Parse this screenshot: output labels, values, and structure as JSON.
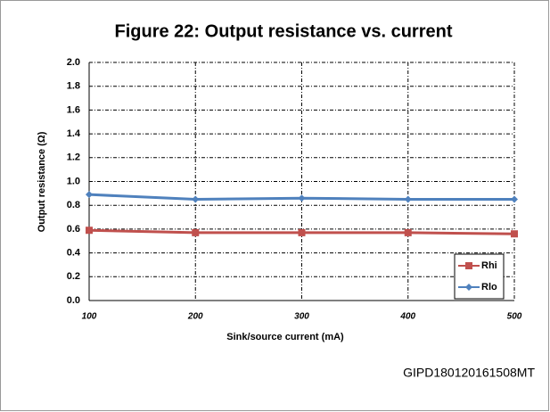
{
  "chart_data": {
    "type": "line",
    "title": "Figure 22: Output resistance vs. current",
    "x_label": "Sink/source current (mA)",
    "y_label": "Output resistance (Ω)",
    "watermark": "GIPD180120161508MT",
    "x": [
      100,
      200,
      300,
      400,
      500
    ],
    "series": [
      {
        "name": "Rhi",
        "color": "#c0504d",
        "marker": "square",
        "values": [
          0.59,
          0.57,
          0.57,
          0.57,
          0.56
        ]
      },
      {
        "name": "Rlo",
        "color": "#4f81bd",
        "marker": "diamond",
        "values": [
          0.89,
          0.85,
          0.86,
          0.85,
          0.85
        ]
      }
    ],
    "xlim": [
      100,
      500
    ],
    "xticks": [
      100,
      200,
      300,
      400,
      500
    ],
    "ylim": [
      0,
      2
    ],
    "yticks": [
      {
        "value": 0,
        "label": "0.0"
      },
      {
        "value": 0.2,
        "label": "0.2"
      },
      {
        "value": 0.4,
        "label": "0.4"
      },
      {
        "value": 0.6,
        "label": "0.6"
      },
      {
        "value": 0.8,
        "label": "0.8"
      },
      {
        "value": 1.0,
        "label": "1.0"
      },
      {
        "value": 1.2,
        "label": "1.2"
      },
      {
        "value": 1.4,
        "label": "1.4"
      },
      {
        "value": 1.6,
        "label": "1.6"
      },
      {
        "value": 1.8,
        "label": "1.8"
      },
      {
        "value": 2.0,
        "label": "2.0"
      }
    ],
    "grid": true,
    "legend": "lower right"
  }
}
